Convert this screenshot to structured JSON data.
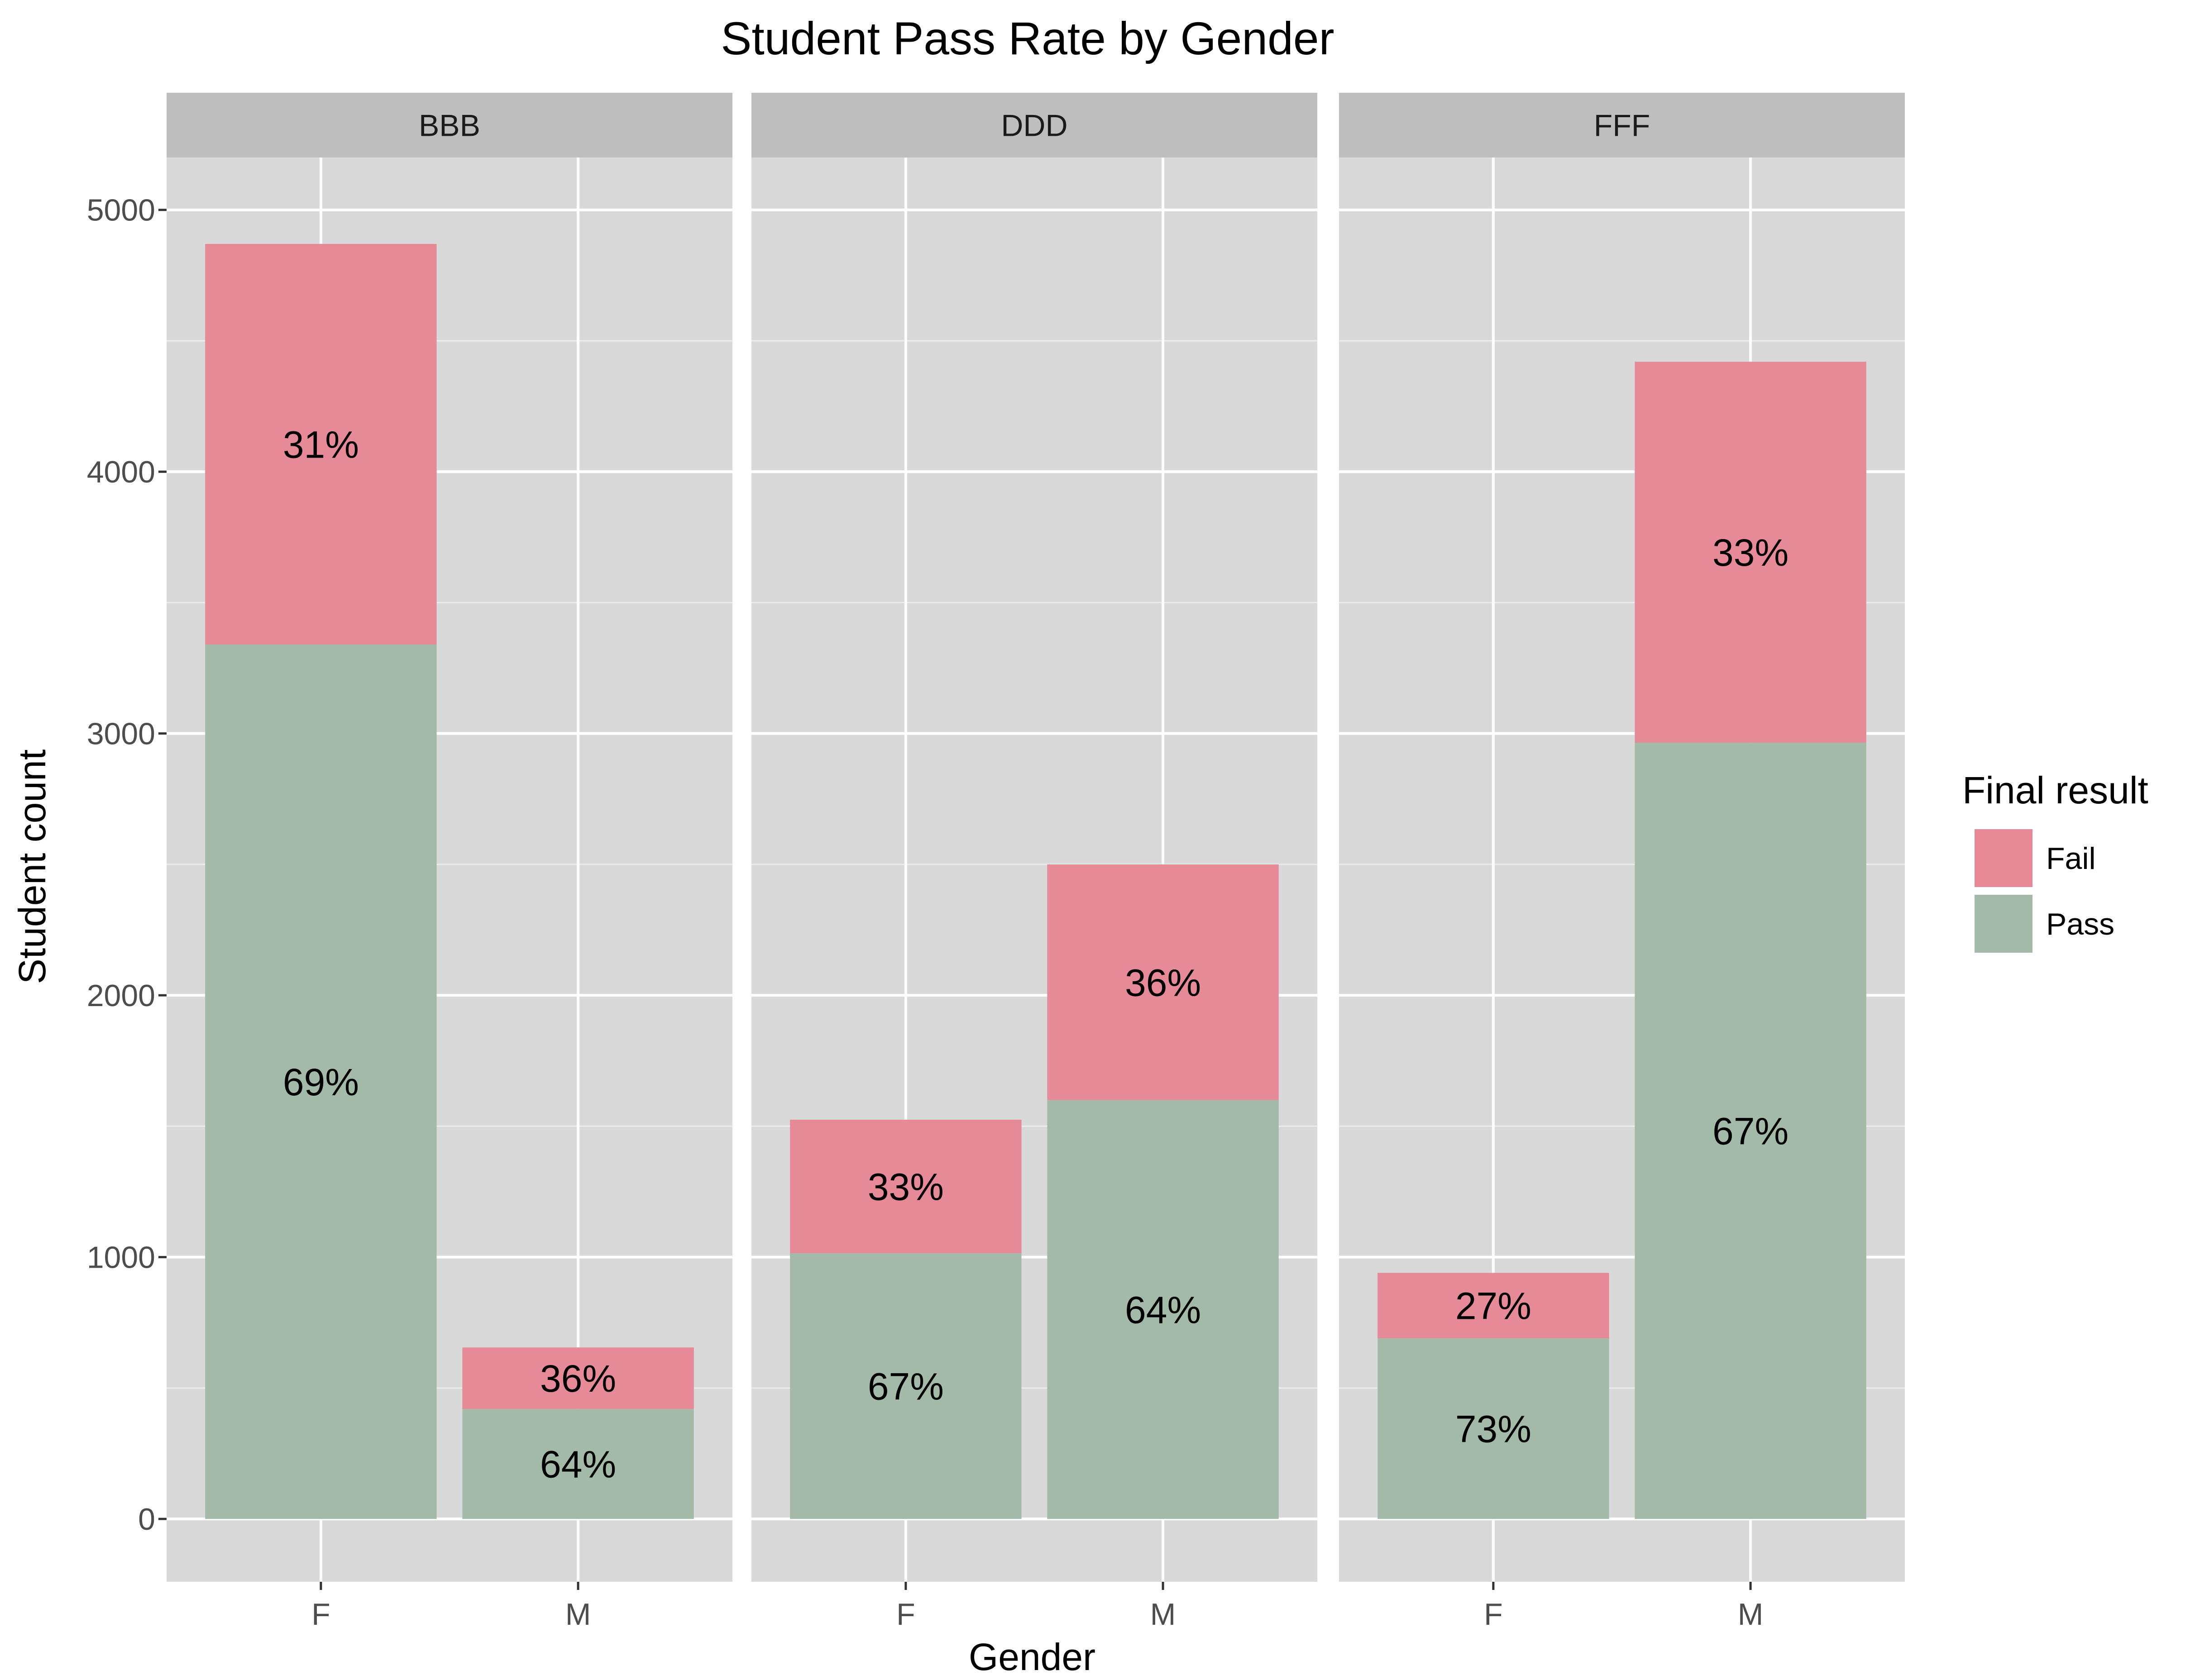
{
  "chart_data": {
    "type": "bar",
    "stacked": true,
    "title": "Student Pass Rate by Gender",
    "xlabel": "Gender",
    "ylabel": "Student count",
    "ylim": [
      -240,
      5200
    ],
    "yticks": [
      0,
      1000,
      2000,
      3000,
      4000,
      5000
    ],
    "grid": true,
    "legend": {
      "title": "Final result",
      "position": "right",
      "items": [
        {
          "name": "Fail",
          "color": "#e68a98"
        },
        {
          "name": "Pass",
          "color": "#a3baa9"
        }
      ]
    },
    "categories": [
      "F",
      "M"
    ],
    "panels": [
      {
        "name": "BBB",
        "series": [
          {
            "name": "Pass",
            "values": [
              3340,
              420
            ],
            "labels": [
              "69%",
              "64%"
            ]
          },
          {
            "name": "Fail",
            "values": [
              1530,
              235
            ],
            "labels": [
              "31%",
              "36%"
            ]
          }
        ]
      },
      {
        "name": "DDD",
        "series": [
          {
            "name": "Pass",
            "values": [
              1015,
              1600
            ],
            "labels": [
              "67%",
              "64%"
            ]
          },
          {
            "name": "Fail",
            "values": [
              510,
              900
            ],
            "labels": [
              "33%",
              "36%"
            ]
          }
        ]
      },
      {
        "name": "FFF",
        "series": [
          {
            "name": "Pass",
            "values": [
              690,
              2965
            ],
            "labels": [
              "73%",
              "67%"
            ]
          },
          {
            "name": "Fail",
            "values": [
              250,
              1455
            ],
            "labels": [
              "27%",
              "33%"
            ]
          }
        ]
      }
    ]
  }
}
